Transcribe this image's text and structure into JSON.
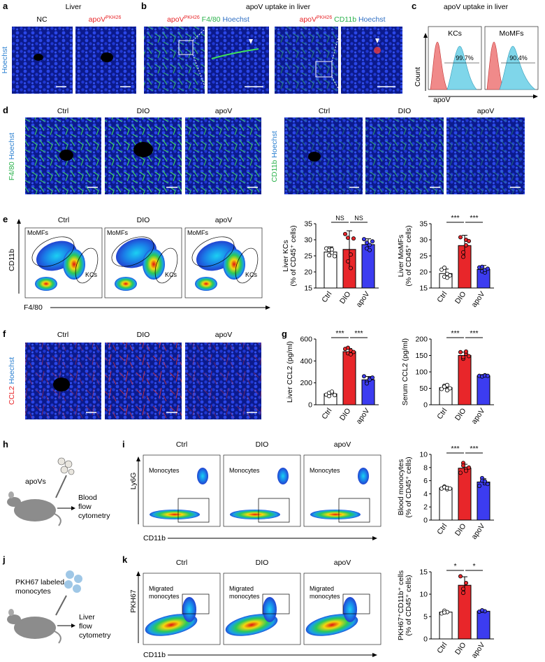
{
  "colors": {
    "ctrl": "#ffffff",
    "dio": "#e8262a",
    "apov": "#3c3cf0",
    "kc_hist": "#7fd6ea",
    "ctrl_hist": "#f08a8a",
    "nucleus": "#1a2fd0"
  },
  "panels": {
    "a": {
      "letter": "a",
      "title": "Liver",
      "labels": [
        "NC",
        "apoV"
      ],
      "label2_sup": "PKH26",
      "ylabel": "Hoechst"
    },
    "b": {
      "letter": "b",
      "title": "apoV uptake in liver",
      "left": {
        "p1": "apoV",
        "sup": "PKH26",
        "p2": " F4/80",
        "p3": " Hoechst"
      },
      "right": {
        "p1": "apoV",
        "sup": "PKH26",
        "p2": " CD11b",
        "p3": " Hoechst"
      }
    },
    "c": {
      "letter": "c",
      "title": "apoV uptake in liver",
      "labels": [
        "KCs",
        "MoMFs"
      ],
      "values": [
        "99.7%",
        "90.4%"
      ],
      "ylabel": "Count",
      "xlabel": "apoV"
    },
    "d": {
      "letter": "d",
      "cols": [
        "Ctrl",
        "DIO",
        "apoV"
      ],
      "ylabel_left": {
        "a": "F4/80",
        "b": " Hoechst"
      },
      "ylabel_right": {
        "a": "CD11b",
        "b": " Hoechst"
      }
    },
    "e": {
      "letter": "e",
      "cols": [
        "Ctrl",
        "DIO",
        "apoV"
      ],
      "gates": [
        "MoMFs",
        "KCs"
      ],
      "ylabel": "CD11b",
      "xlabel": "F4/80"
    },
    "f": {
      "letter": "f",
      "cols": [
        "Ctrl",
        "DIO",
        "apoV"
      ],
      "ylabel": {
        "a": "CCL2",
        "b": " Hoechst"
      }
    },
    "g": {
      "letter": "g"
    },
    "h": {
      "letter": "h",
      "label": "apoVs",
      "arrow_text": [
        "Blood",
        "flow",
        "cytometry"
      ]
    },
    "i": {
      "letter": "i",
      "cols": [
        "Ctrl",
        "DIO",
        "apoV"
      ],
      "gate": "Monocytes",
      "ylabel": "Ly6G",
      "xlabel": "CD11b"
    },
    "j": {
      "letter": "j",
      "label": [
        "PKH67 labeled",
        "monocytes"
      ],
      "arrow_text": [
        "Liver",
        "flow",
        "cytometry"
      ]
    },
    "k": {
      "letter": "k",
      "cols": [
        "Ctrl",
        "DIO",
        "apoV"
      ],
      "gate": [
        "Migrated",
        "monocytes"
      ],
      "ylabel": "PKH67",
      "xlabel": "CD11b"
    }
  },
  "chart_data": [
    {
      "type": "bar",
      "id": "liver-kcs",
      "categories": [
        "Ctrl",
        "DIO",
        "apoV"
      ],
      "values": [
        26.2,
        27.0,
        28.5
      ],
      "errors": [
        1.6,
        5.8,
        1.8
      ],
      "points": [
        [
          27.3,
          26.8,
          26.0,
          25.2,
          27.0,
          24.9
        ],
        [
          31.8,
          30.6,
          25.4,
          23.3,
          21.2,
          30.4
        ],
        [
          30.2,
          29.1,
          28.4,
          27.3,
          26.8,
          29.5
        ]
      ],
      "ylabel": [
        "Liver KCs",
        "(% of CD45⁺ cells)"
      ],
      "ylim": [
        15,
        35
      ],
      "yticks": [
        15,
        20,
        25,
        30,
        35
      ],
      "sig": [
        {
          "from": 0,
          "to": 1,
          "label": "NS"
        },
        {
          "from": 1,
          "to": 2,
          "label": "NS"
        }
      ]
    },
    {
      "type": "bar",
      "id": "liver-momfs",
      "categories": [
        "Ctrl",
        "DIO",
        "apoV"
      ],
      "values": [
        19.5,
        28.2,
        20.8
      ],
      "errors": [
        1.4,
        3.2,
        1.2
      ],
      "points": [
        [
          20.7,
          18.5,
          18.2,
          21.3,
          19.4,
          18.9
        ],
        [
          30.8,
          26.1,
          30.0,
          24.7,
          28.3,
          29.6
        ],
        [
          21.4,
          20.2,
          19.8,
          21.6,
          20.6,
          21.0
        ]
      ],
      "ylabel": [
        "Liver MoMFs",
        "(% of CD45⁺ cells)"
      ],
      "ylim": [
        15,
        35
      ],
      "yticks": [
        15,
        20,
        25,
        30,
        35
      ],
      "sig": [
        {
          "from": 0,
          "to": 1,
          "label": "***"
        },
        {
          "from": 1,
          "to": 2,
          "label": "***"
        }
      ]
    },
    {
      "type": "bar",
      "id": "liver-ccl2",
      "categories": [
        "Ctrl",
        "DIO",
        "apoV"
      ],
      "values": [
        100,
        485,
        228
      ],
      "errors": [
        20,
        28,
        30
      ],
      "points": [
        [
          92,
          80,
          110,
          108,
          120,
          88
        ],
        [
          510,
          470,
          495,
          520,
          460,
          482
        ],
        [
          260,
          210,
          240,
          195,
          230,
          248
        ]
      ],
      "ylabel": [
        "Liver CCL2 (pg/ml)"
      ],
      "ylim": [
        0,
        600
      ],
      "yticks": [
        0,
        200,
        400,
        600
      ],
      "sig": [
        {
          "from": 0,
          "to": 1,
          "label": "***"
        },
        {
          "from": 1,
          "to": 2,
          "label": "***"
        }
      ]
    },
    {
      "type": "bar",
      "id": "serum-ccl2",
      "categories": [
        "Ctrl",
        "DIO",
        "apoV"
      ],
      "values": [
        52,
        150,
        88
      ],
      "errors": [
        7,
        10,
        2
      ],
      "points": [
        [
          48,
          58,
          44,
          55,
          60,
          50
        ],
        [
          160,
          140,
          155,
          145,
          162,
          148
        ],
        [
          88,
          87,
          90,
          86,
          89,
          88
        ]
      ],
      "ylabel": [
        "Serum CCL2 (pg/ml)"
      ],
      "ylim": [
        0,
        200
      ],
      "yticks": [
        0,
        50,
        100,
        150,
        200
      ],
      "sig": [
        {
          "from": 0,
          "to": 1,
          "label": "***"
        },
        {
          "from": 1,
          "to": 2,
          "label": "***"
        }
      ]
    },
    {
      "type": "bar",
      "id": "blood-monocytes",
      "categories": [
        "Ctrl",
        "DIO",
        "apoV"
      ],
      "values": [
        4.9,
        7.9,
        5.8
      ],
      "errors": [
        0.25,
        0.6,
        0.5
      ],
      "points": [
        [
          4.8,
          5.1,
          4.7,
          5.0,
          4.9,
          4.8
        ],
        [
          7.2,
          8.7,
          7.8,
          8.3,
          7.5,
          8.0
        ],
        [
          5.2,
          6.4,
          5.6,
          6.0,
          5.9,
          5.5
        ]
      ],
      "ylabel": [
        "Blood monocytes",
        "(% of CD45⁺ cells)"
      ],
      "ylim": [
        0,
        10
      ],
      "yticks": [
        0,
        2,
        4,
        6,
        8,
        10
      ],
      "sig": [
        {
          "from": 0,
          "to": 1,
          "label": "***"
        },
        {
          "from": 1,
          "to": 2,
          "label": "***"
        }
      ]
    },
    {
      "type": "bar",
      "id": "pkh67-cells",
      "categories": [
        "Ctrl",
        "DIO",
        "apoV"
      ],
      "values": [
        6.0,
        12.0,
        6.2
      ],
      "errors": [
        0.3,
        1.9,
        0.2
      ],
      "points": [
        [
          5.7,
          6.3,
          6.0,
          5.9
        ],
        [
          14.0,
          10.3,
          12.5,
          11.2
        ],
        [
          6.1,
          6.3,
          6.2,
          6.4
        ]
      ],
      "ylabel": [
        "PKH67⁺CD11b⁺ cells",
        "(% of CD45⁺ cells)"
      ],
      "ylim": [
        0,
        15
      ],
      "yticks": [
        0,
        5,
        10,
        15
      ],
      "sig": [
        {
          "from": 0,
          "to": 1,
          "label": "*"
        },
        {
          "from": 1,
          "to": 2,
          "label": "*"
        }
      ]
    }
  ]
}
